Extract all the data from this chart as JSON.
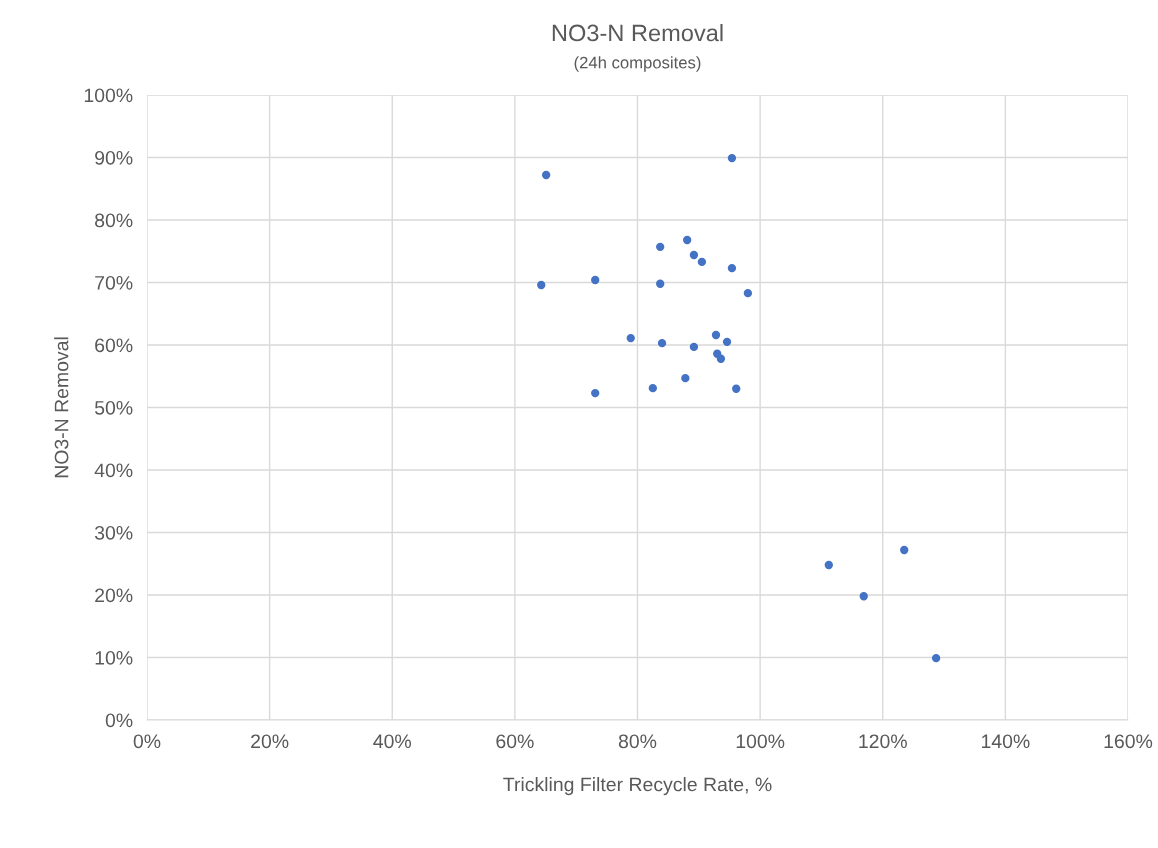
{
  "chart_data": {
    "type": "scatter",
    "title": "NO3-N Removal",
    "subtitle": "(24h composites)",
    "xlabel": "Trickling Filter Recycle Rate, %",
    "ylabel": "NO3-N Removal",
    "x": [
      65.1,
      95.4,
      64.3,
      73.1,
      83.7,
      88.1,
      89.2,
      90.5,
      95.4,
      83.7,
      98.0,
      78.9,
      84.0,
      89.2,
      92.8,
      94.6,
      93.0,
      93.6,
      73.1,
      82.5,
      87.8,
      96.1,
      111.2,
      123.5,
      116.9,
      128.7
    ],
    "values": [
      87.2,
      89.9,
      69.6,
      70.4,
      75.7,
      76.8,
      74.4,
      73.3,
      72.3,
      69.8,
      68.3,
      61.1,
      60.3,
      59.7,
      61.6,
      60.5,
      58.6,
      57.8,
      52.3,
      53.1,
      54.7,
      53.0,
      24.8,
      27.2,
      19.8,
      9.9
    ],
    "color": "#4472c4",
    "marker": "circle",
    "xlim": [
      0,
      160
    ],
    "ylim": [
      0,
      100
    ],
    "xticks": [
      {
        "value": 0,
        "label": "0%"
      },
      {
        "value": 20,
        "label": "20%"
      },
      {
        "value": 40,
        "label": "40%"
      },
      {
        "value": 60,
        "label": "60%"
      },
      {
        "value": 80,
        "label": "80%"
      },
      {
        "value": 100,
        "label": "100%"
      },
      {
        "value": 120,
        "label": "120%"
      },
      {
        "value": 140,
        "label": "140%"
      },
      {
        "value": 160,
        "label": "160%"
      }
    ],
    "yticks": [
      {
        "value": 0,
        "label": "0%"
      },
      {
        "value": 10,
        "label": "10%"
      },
      {
        "value": 20,
        "label": "20%"
      },
      {
        "value": 30,
        "label": "30%"
      },
      {
        "value": 40,
        "label": "40%"
      },
      {
        "value": 50,
        "label": "50%"
      },
      {
        "value": 60,
        "label": "60%"
      },
      {
        "value": 70,
        "label": "70%"
      },
      {
        "value": 80,
        "label": "80%"
      },
      {
        "value": 90,
        "label": "90%"
      },
      {
        "value": 100,
        "label": "100%"
      }
    ],
    "grid": true
  }
}
